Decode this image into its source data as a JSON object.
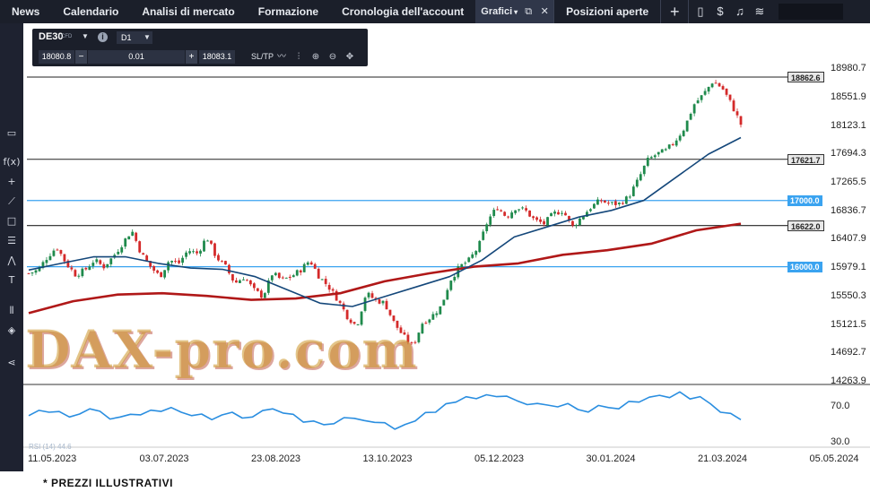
{
  "nav": {
    "items": [
      "News",
      "Calendario",
      "Analisi di mercato",
      "Formazione",
      "Cronologia dell'account"
    ],
    "active": "Grafici",
    "after": "Posizioni aperte",
    "add": "+"
  },
  "widget": {
    "symbol": "DE30",
    "tag": "CFD",
    "timeframe": "D1",
    "bid": "18080.8",
    "qty": "0.01",
    "ask": "18083.1",
    "sltp": "SL/TP",
    "minus": "−",
    "plus": "+"
  },
  "levels": [
    {
      "label": "18862.6",
      "value": 18862.6,
      "style": "dark"
    },
    {
      "label": "17621.7",
      "value": 17621.7,
      "style": "dark"
    },
    {
      "label": "17000.0",
      "value": 17000.0,
      "style": "blue"
    },
    {
      "label": "16622.0",
      "value": 16622.0,
      "style": "dark"
    },
    {
      "label": "16000.0",
      "value": 16000.0,
      "style": "blue"
    }
  ],
  "watermark": "DAX-pro.com",
  "rsi": {
    "legend": "RSI (14) 44.6",
    "ticks": [
      "70.0",
      "30.0"
    ]
  },
  "footer": "* PREZZI ILLUSTRATIVI",
  "colors": {
    "up": "#1f8a4c",
    "down": "#d42a2a",
    "ma_fast": "#14477a",
    "ma_slow": "#b01818",
    "rsi": "#2a8ee0",
    "level_blue": "#3aa3f0"
  },
  "chart_data": {
    "type": "candlestick",
    "ylim": [
      14263.9,
      19200
    ],
    "yticks": [
      "18980.7",
      "18551.9",
      "18123.1",
      "17694.3",
      "17265.5",
      "16836.7",
      "16407.9",
      "15979.1",
      "15550.3",
      "15121.5",
      "14692.7",
      "14263.9"
    ],
    "xticks": [
      "11.05.2023",
      "03.07.2023",
      "23.08.2023",
      "13.10.2023",
      "05.12.2023",
      "30.01.2024",
      "21.03.2024",
      "05.05.2024"
    ],
    "close_path": [
      15900,
      15950,
      16150,
      16300,
      16050,
      15880,
      15950,
      16100,
      16000,
      16150,
      16350,
      16550,
      16200,
      16000,
      15850,
      16100,
      16050,
      16250,
      16200,
      16450,
      16150,
      16000,
      15750,
      15850,
      15650,
      15550,
      15900,
      15800,
      15850,
      15950,
      16100,
      15850,
      15700,
      15500,
      15250,
      15100,
      15600,
      15500,
      15450,
      15150,
      14950,
      14800,
      15150,
      15250,
      15400,
      15800,
      16000,
      16100,
      16300,
      16700,
      16900,
      16750,
      16900,
      16850,
      16700,
      16650,
      16800,
      16850,
      16600,
      16750,
      16900,
      17000,
      16950,
      16950,
      17050,
      17300,
      17600,
      17700,
      17750,
      17900,
      18100,
      18450,
      18600,
      18800,
      18700,
      18450,
      18150
    ],
    "ma_slow": [
      15300,
      15480,
      15580,
      15600,
      15560,
      15500,
      15520,
      15600,
      15780,
      15900,
      16000,
      16050,
      16180,
      16250,
      16350,
      16550,
      16650
    ],
    "ma_fast": [
      15950,
      16050,
      16150,
      16150,
      16050,
      15980,
      15960,
      15850,
      15650,
      15450,
      15400,
      15550,
      15700,
      15850,
      16100,
      16450,
      16600,
      16750,
      16850,
      17000,
      17350,
      17700,
      17950
    ],
    "rsi_values": [
      50,
      55,
      48,
      60,
      45,
      52,
      58,
      62,
      50,
      44,
      55,
      48,
      60,
      52,
      42,
      38,
      46,
      40,
      30,
      42,
      55,
      70,
      75,
      78,
      72,
      68,
      63,
      59,
      65,
      60,
      70,
      80,
      85,
      78,
      55,
      44
    ]
  }
}
